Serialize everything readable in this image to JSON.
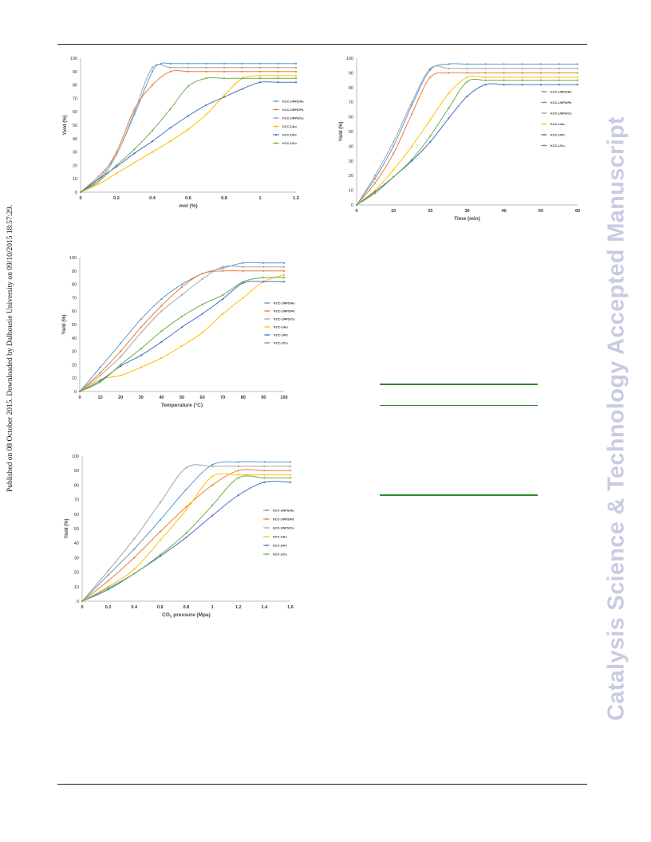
{
  "page": {
    "side_note": "Published on 08 October 2015. Downloaded by Dalhousie University on 09/10/2015 18:57:29.",
    "watermark": "Catalysis Science & Technology Accepted Manuscript"
  },
  "chart_data": [
    {
      "id": "c1",
      "type": "line",
      "xlabel": "mol (%)",
      "ylabel": "Yield (%)",
      "xlim": [
        0,
        1.2
      ],
      "ylim": [
        0,
        100
      ],
      "xticks": [
        0,
        0.2,
        0.4,
        0.6,
        0.8,
        1,
        1.2
      ],
      "xtick_labels": [
        "0",
        "0.2",
        "0.4",
        "0.6",
        "0.8",
        "1",
        "1.2"
      ],
      "yticks": [
        0,
        10,
        20,
        30,
        40,
        50,
        60,
        70,
        80,
        90,
        100
      ],
      "legend": "right",
      "series": [
        {
          "name": "KCC-1/NPS/Au",
          "color": "#5b9bd5",
          "x": [
            0,
            0.1,
            0.2,
            0.3,
            0.4,
            0.45,
            0.5,
            0.6,
            0.7,
            0.8,
            0.9,
            1.0,
            1.1,
            1.2
          ],
          "y": [
            0,
            8,
            28,
            58,
            90,
            96,
            96,
            96,
            96,
            96,
            96,
            96,
            96,
            96
          ]
        },
        {
          "name": "KCC-1/NPS/Pd",
          "color": "#ed7d31",
          "x": [
            0,
            0.1,
            0.2,
            0.3,
            0.4,
            0.5,
            0.6,
            0.7,
            0.8,
            0.9,
            1.0,
            1.1,
            1.2
          ],
          "y": [
            0,
            10,
            30,
            62,
            80,
            90,
            90,
            90,
            90,
            90,
            90,
            90,
            90
          ]
        },
        {
          "name": "KCC-1/NPS/Cu",
          "color": "#a5a5a5",
          "x": [
            0,
            0.1,
            0.2,
            0.3,
            0.4,
            0.5,
            0.6,
            0.7,
            0.8,
            0.9,
            1.0,
            1.1,
            1.2
          ],
          "y": [
            0,
            12,
            28,
            60,
            93,
            93,
            93,
            93,
            93,
            93,
            93,
            93,
            93
          ]
        },
        {
          "name": "KCC-1/Au",
          "color": "#ffc000",
          "x": [
            0,
            0.1,
            0.2,
            0.3,
            0.4,
            0.5,
            0.6,
            0.7,
            0.8,
            0.9,
            1.0,
            1.1,
            1.2
          ],
          "y": [
            0,
            6,
            14,
            22,
            30,
            38,
            47,
            58,
            72,
            85,
            87,
            87,
            87
          ]
        },
        {
          "name": "KCC-1/Pd",
          "color": "#4472c4",
          "x": [
            0,
            0.1,
            0.2,
            0.3,
            0.4,
            0.5,
            0.6,
            0.7,
            0.8,
            0.9,
            1.0,
            1.1,
            1.2
          ],
          "y": [
            0,
            10,
            19,
            29,
            38,
            48,
            57,
            65,
            71,
            77,
            82,
            82,
            82
          ]
        },
        {
          "name": "KCC-1/Cu",
          "color": "#70ad47",
          "x": [
            0,
            0.1,
            0.2,
            0.3,
            0.4,
            0.5,
            0.6,
            0.7,
            0.8,
            0.9,
            1.0,
            1.1,
            1.2
          ],
          "y": [
            0,
            8,
            20,
            32,
            46,
            62,
            79,
            85,
            85,
            85,
            85,
            85,
            85
          ]
        }
      ]
    },
    {
      "id": "c2",
      "type": "line",
      "xlabel": "Time (min)",
      "ylabel": "Yield (%)",
      "xlim": [
        0,
        60
      ],
      "ylim": [
        0,
        100
      ],
      "xticks": [
        0,
        10,
        20,
        30,
        40,
        50,
        60
      ],
      "xtick_labels": [
        "0",
        "10",
        "20",
        "30",
        "40",
        "50",
        "60"
      ],
      "yticks": [
        0,
        10,
        20,
        30,
        40,
        50,
        60,
        70,
        80,
        90,
        100
      ],
      "legend": "right",
      "series": [
        {
          "name": "KCC-1/NPS/Au",
          "color": "#5b9bd5",
          "x": [
            0,
            5,
            10,
            15,
            20,
            25,
            30,
            35,
            40,
            45,
            50,
            55,
            60
          ],
          "y": [
            0,
            18,
            40,
            68,
            92,
            96,
            96,
            96,
            96,
            96,
            96,
            96,
            96
          ]
        },
        {
          "name": "KCC-1/NPS/Pd",
          "color": "#ed7d31",
          "x": [
            0,
            5,
            10,
            15,
            20,
            25,
            30,
            35,
            40,
            45,
            50,
            55,
            60
          ],
          "y": [
            0,
            15,
            35,
            62,
            87,
            90,
            90,
            90,
            90,
            90,
            90,
            90,
            90
          ]
        },
        {
          "name": "KCC-1/NPS/Cu",
          "color": "#a5a5a5",
          "x": [
            0,
            5,
            10,
            15,
            20,
            25,
            30,
            35,
            40,
            45,
            50,
            55,
            60
          ],
          "y": [
            0,
            20,
            43,
            70,
            93,
            93,
            93,
            93,
            93,
            93,
            93,
            93,
            93
          ]
        },
        {
          "name": "KCC-1/Au",
          "color": "#ffc000",
          "x": [
            0,
            5,
            10,
            15,
            20,
            25,
            30,
            35,
            40,
            45,
            50,
            55,
            60
          ],
          "y": [
            0,
            10,
            24,
            40,
            58,
            76,
            87,
            87,
            87,
            87,
            87,
            87,
            87
          ]
        },
        {
          "name": "KCC-1/Pd",
          "color": "#4472c4",
          "x": [
            0,
            5,
            10,
            15,
            20,
            25,
            30,
            35,
            40,
            45,
            50,
            55,
            60
          ],
          "y": [
            0,
            9,
            19,
            30,
            43,
            59,
            74,
            82,
            82,
            82,
            82,
            82,
            82
          ]
        },
        {
          "name": "KCC-1/Cu",
          "color": "#70ad47",
          "x": [
            0,
            5,
            10,
            15,
            20,
            25,
            30,
            35,
            40,
            45,
            50,
            55,
            60
          ],
          "y": [
            0,
            8,
            19,
            31,
            47,
            66,
            84,
            85,
            85,
            85,
            85,
            85,
            85
          ]
        }
      ]
    },
    {
      "id": "c3",
      "type": "line",
      "xlabel": "Temperature (°C)",
      "ylabel": "Yield (%)",
      "xlim": [
        0,
        100
      ],
      "ylim": [
        0,
        100
      ],
      "xticks": [
        0,
        10,
        20,
        30,
        40,
        50,
        60,
        70,
        80,
        90,
        100
      ],
      "xtick_labels": [
        "0",
        "10",
        "20",
        "30",
        "40",
        "50",
        "60",
        "70",
        "80",
        "90",
        "100"
      ],
      "yticks": [
        0,
        10,
        20,
        30,
        40,
        50,
        60,
        70,
        80,
        90,
        100
      ],
      "legend": "right",
      "series": [
        {
          "name": "KCC-1/NPS/Au",
          "color": "#5b9bd5",
          "x": [
            0,
            10,
            20,
            30,
            40,
            50,
            60,
            70,
            80,
            90,
            100
          ],
          "y": [
            0,
            18,
            36,
            54,
            69,
            80,
            88,
            92,
            96,
            96,
            96
          ]
        },
        {
          "name": "KCC-1/NPS/Pd",
          "color": "#ed7d31",
          "x": [
            0,
            10,
            20,
            30,
            40,
            50,
            60,
            70,
            80,
            90,
            100
          ],
          "y": [
            0,
            14,
            30,
            48,
            64,
            78,
            88,
            90,
            90,
            90,
            90
          ]
        },
        {
          "name": "KCC-1/NPS/Cu",
          "color": "#a5a5a5",
          "x": [
            0,
            10,
            20,
            30,
            40,
            50,
            60,
            70,
            80,
            90,
            100
          ],
          "y": [
            0,
            12,
            26,
            44,
            60,
            72,
            84,
            93,
            93,
            93,
            93
          ]
        },
        {
          "name": "KCC-1/Au",
          "color": "#ffc000",
          "x": [
            0,
            10,
            20,
            30,
            40,
            50,
            60,
            70,
            80,
            90,
            100
          ],
          "y": [
            0,
            9,
            12,
            18,
            25,
            34,
            44,
            58,
            70,
            82,
            87
          ]
        },
        {
          "name": "KCC-1/Pd",
          "color": "#4472c4",
          "x": [
            0,
            10,
            20,
            30,
            40,
            50,
            60,
            70,
            80,
            90,
            100
          ],
          "y": [
            0,
            8,
            19,
            27,
            37,
            48,
            58,
            69,
            81,
            82,
            82
          ]
        },
        {
          "name": "KCC-1/Cu",
          "color": "#70ad47",
          "x": [
            0,
            10,
            20,
            30,
            40,
            50,
            60,
            70,
            80,
            90,
            100
          ],
          "y": [
            0,
            7,
            20,
            32,
            45,
            56,
            65,
            72,
            82,
            85,
            85
          ]
        }
      ]
    },
    {
      "id": "c4",
      "type": "line",
      "xlabel": "CO2 pressure (Mpa)",
      "xlabel_parts": [
        "CO",
        "2",
        " pressure (Mpa)"
      ],
      "ylabel": "Yield (%)",
      "xlim": [
        0,
        1.6
      ],
      "ylim": [
        0,
        100
      ],
      "xticks": [
        0,
        0.2,
        0.4,
        0.6,
        0.8,
        1,
        1.2,
        1.4,
        1.6
      ],
      "xtick_labels": [
        "0",
        "0.2",
        "0.4",
        "0.6",
        "0.8",
        "1",
        "1.2",
        "1.4",
        "1.6"
      ],
      "yticks": [
        0,
        10,
        20,
        30,
        40,
        50,
        60,
        70,
        80,
        90,
        100
      ],
      "legend": "right",
      "series": [
        {
          "name": "KCC-1/NPS/Au",
          "color": "#5b9bd5",
          "x": [
            0,
            0.2,
            0.4,
            0.6,
            0.8,
            1.0,
            1.2,
            1.4,
            1.6
          ],
          "y": [
            0,
            18,
            36,
            56,
            77,
            94,
            96,
            96,
            96
          ]
        },
        {
          "name": "KCC-1/NPS/Pd",
          "color": "#ed7d31",
          "x": [
            0,
            0.2,
            0.4,
            0.6,
            0.8,
            1.0,
            1.2,
            1.4,
            1.6
          ],
          "y": [
            0,
            14,
            30,
            48,
            65,
            80,
            90,
            90,
            90
          ]
        },
        {
          "name": "KCC-1/NPS/Cu",
          "color": "#a5a5a5",
          "x": [
            0,
            0.2,
            0.4,
            0.6,
            0.8,
            1.0,
            1.2,
            1.4,
            1.6
          ],
          "y": [
            0,
            21,
            43,
            68,
            92,
            93,
            93,
            93,
            93
          ]
        },
        {
          "name": "KCC-1/Au",
          "color": "#ffc000",
          "x": [
            0,
            0.2,
            0.4,
            0.6,
            0.8,
            1.0,
            1.2,
            1.4,
            1.6
          ],
          "y": [
            0,
            10,
            22,
            42,
            63,
            86,
            87,
            87,
            87
          ]
        },
        {
          "name": "KCC-1/Pd",
          "color": "#4472c4",
          "x": [
            0,
            0.2,
            0.4,
            0.6,
            0.8,
            1.0,
            1.2,
            1.4,
            1.6
          ],
          "y": [
            0,
            8,
            19,
            31,
            44,
            59,
            73,
            82,
            82
          ]
        },
        {
          "name": "KCC-1/Cu",
          "color": "#70ad47",
          "x": [
            0,
            0.2,
            0.4,
            0.6,
            0.8,
            1.0,
            1.2,
            1.4,
            1.6
          ],
          "y": [
            0,
            9,
            19,
            32,
            47,
            66,
            85,
            85,
            85
          ]
        }
      ]
    }
  ]
}
